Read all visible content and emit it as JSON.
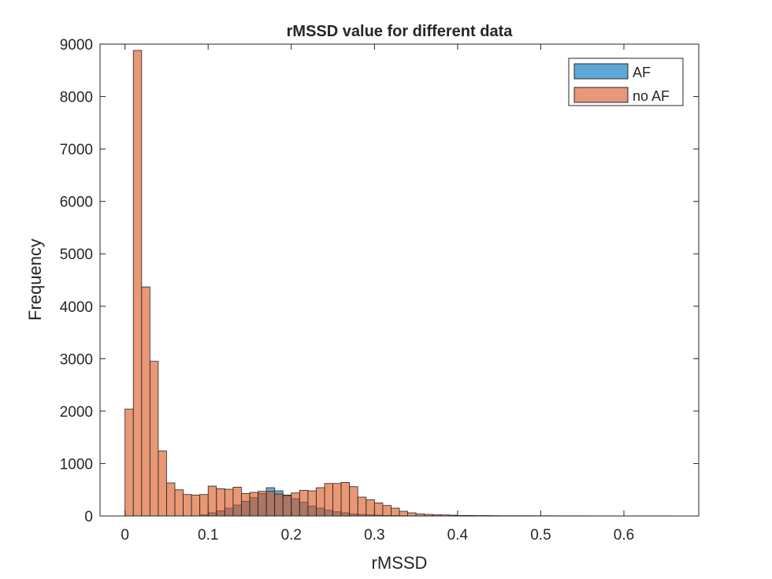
{
  "chart_data": {
    "type": "bar",
    "title": "rMSSD value for different data",
    "xlabel": "rMSSD",
    "ylabel": "Frequency",
    "xlim": [
      -0.03,
      0.69
    ],
    "ylim": [
      0,
      9000
    ],
    "xticks": [
      0,
      0.1,
      0.2,
      0.3,
      0.4,
      0.5,
      0.6
    ],
    "xtick_labels": [
      "0",
      "0.1",
      "0.2",
      "0.3",
      "0.4",
      "0.5",
      "0.6"
    ],
    "yticks": [
      0,
      1000,
      2000,
      3000,
      4000,
      5000,
      6000,
      7000,
      8000,
      9000
    ],
    "ytick_labels": [
      "0",
      "1000",
      "2000",
      "3000",
      "4000",
      "5000",
      "6000",
      "7000",
      "8000",
      "9000"
    ],
    "bin_width": 0.01,
    "bin_start": 0,
    "legend_position": "top-right",
    "grid": false,
    "series": [
      {
        "name": "AF",
        "color": "#0072BD",
        "face_color": "#5ea8d8",
        "values": [
          0,
          0,
          0,
          0,
          0,
          0,
          0,
          0,
          0,
          20,
          60,
          100,
          150,
          210,
          280,
          350,
          430,
          540,
          480,
          400,
          330,
          260,
          190,
          150,
          110,
          80,
          60,
          40,
          30,
          20,
          15,
          10,
          8,
          5,
          3,
          2,
          2,
          1,
          1,
          0
        ]
      },
      {
        "name": "no AF",
        "color": "#D95319",
        "face_color": "#e8987a",
        "values": [
          2040,
          8880,
          4370,
          2950,
          1240,
          630,
          500,
          410,
          400,
          410,
          570,
          520,
          510,
          550,
          430,
          450,
          470,
          470,
          420,
          390,
          440,
          490,
          480,
          540,
          620,
          620,
          640,
          560,
          360,
          310,
          250,
          200,
          150,
          90,
          60,
          40,
          30,
          25,
          20,
          15,
          10,
          10,
          8,
          8,
          6,
          5,
          5,
          5,
          5,
          4,
          4,
          4,
          3,
          3,
          3,
          3,
          2,
          2,
          2,
          2,
          2,
          2,
          2,
          2,
          2,
          2
        ]
      }
    ]
  }
}
